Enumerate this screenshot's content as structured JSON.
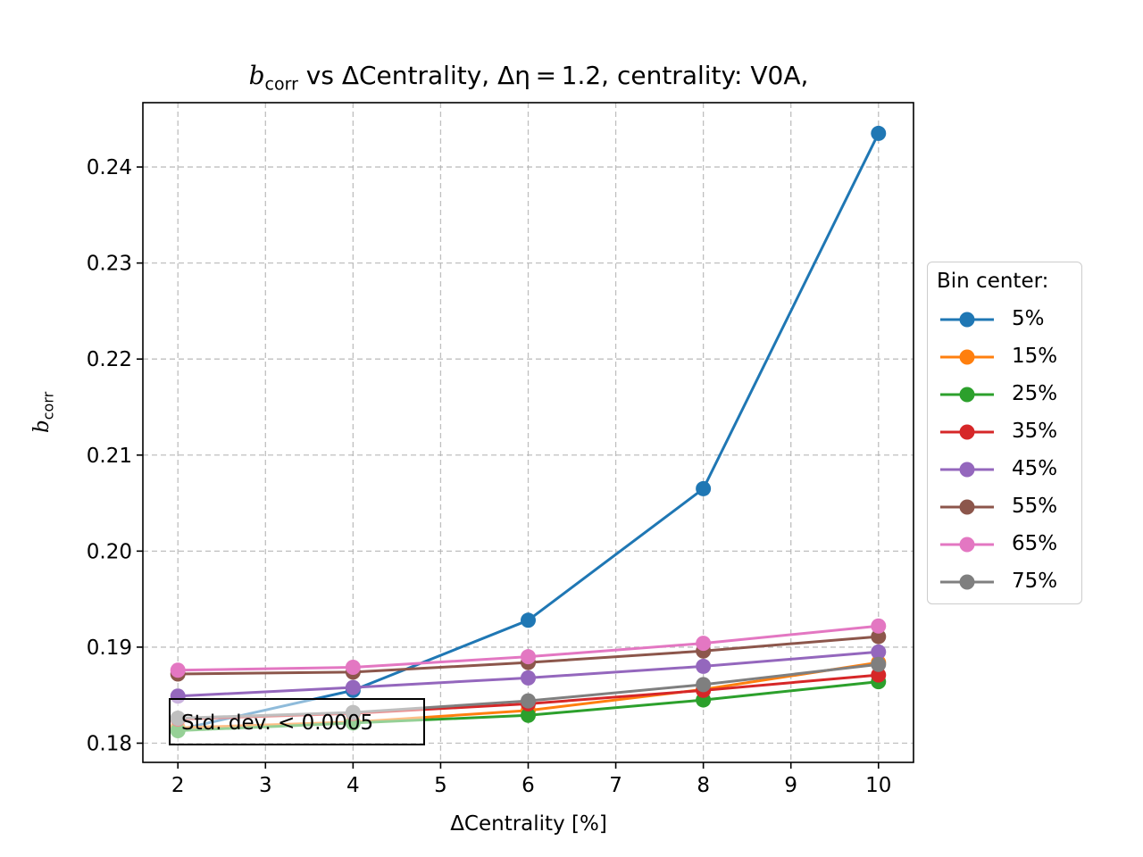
{
  "chart_data": {
    "type": "line",
    "title_parts": {
      "var": "b",
      "sub": "corr",
      "rest": " vs ΔCentrality, Δη = 1.2, centrality: V0A,"
    },
    "ylabel_parts": {
      "var": "b",
      "sub": "corr"
    },
    "xlabel": "ΔCentrality [%]",
    "x": [
      2,
      4,
      6,
      8,
      10
    ],
    "xlim": [
      1.6,
      10.4
    ],
    "ylim": [
      0.178,
      0.2467
    ],
    "xticks": [
      2,
      3,
      4,
      5,
      6,
      7,
      8,
      9,
      10
    ],
    "yticks": [
      0.18,
      0.19,
      0.2,
      0.21,
      0.22,
      0.23,
      0.24
    ],
    "ytick_labels": [
      "0.18",
      "0.19",
      "0.20",
      "0.21",
      "0.22",
      "0.23",
      "0.24"
    ],
    "grid": true,
    "legend_title": "Bin center:",
    "legend_position": "outside-right",
    "series": [
      {
        "name": "5%",
        "color": "#1f77b4",
        "values": [
          0.1814,
          0.1855,
          0.1928,
          0.2065,
          0.2435
        ]
      },
      {
        "name": "15%",
        "color": "#ff7f0e",
        "values": [
          0.1816,
          0.1822,
          0.1834,
          0.1856,
          0.1884
        ]
      },
      {
        "name": "25%",
        "color": "#2ca02c",
        "values": [
          0.1813,
          0.1821,
          0.1829,
          0.1845,
          0.1864
        ]
      },
      {
        "name": "35%",
        "color": "#d62728",
        "values": [
          0.1825,
          0.1831,
          0.1841,
          0.1855,
          0.1871
        ]
      },
      {
        "name": "45%",
        "color": "#9467bd",
        "values": [
          0.1849,
          0.1858,
          0.1868,
          0.188,
          0.1895
        ]
      },
      {
        "name": "55%",
        "color": "#8c564b",
        "values": [
          0.1872,
          0.1874,
          0.1884,
          0.1896,
          0.1911
        ]
      },
      {
        "name": "65%",
        "color": "#e377c2",
        "values": [
          0.1876,
          0.1879,
          0.189,
          0.1904,
          0.1922
        ]
      },
      {
        "name": "75%",
        "color": "#7f7f7f",
        "values": [
          0.1826,
          0.1832,
          0.1844,
          0.1861,
          0.1882
        ]
      }
    ],
    "annotation": "Std. dev. < 0.0005"
  }
}
